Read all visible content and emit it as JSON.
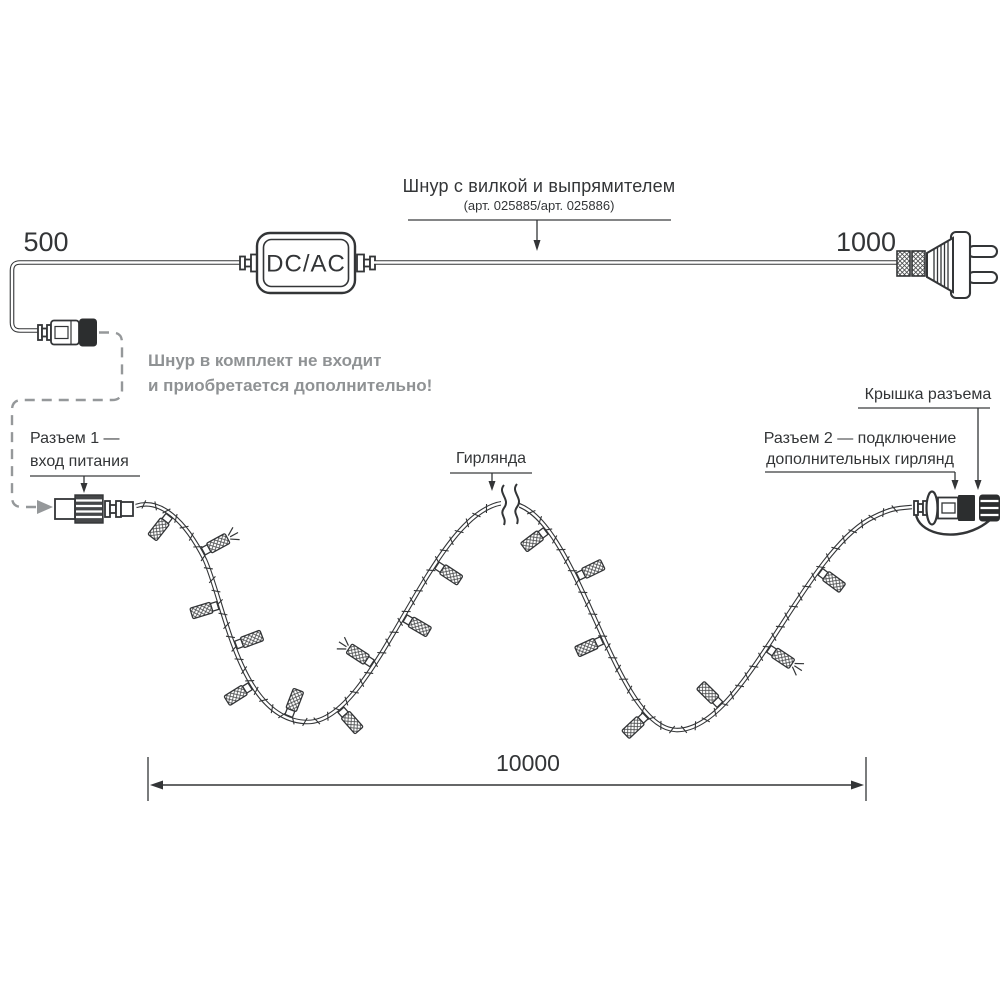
{
  "diagram": {
    "power_cord": {
      "title": "Шнур с вилкой и выпрямителем",
      "article": "(арт. 025885/арт. 025886)",
      "segment_length_left": "500",
      "segment_length_right": "1000",
      "converter_label": "DC/AC"
    },
    "note": {
      "line1": "Шнур в комплект не входит",
      "line2": "и приобретается дополнительно!"
    },
    "garland": {
      "connector1_label_line1": "Разъем 1 —",
      "connector1_label_line2": "вход питания",
      "garland_label": "Гирлянда",
      "connector2_label_line1": "Разъем 2 — подключение",
      "connector2_label_line2": "дополнительных гирлянд",
      "cap_label": "Крышка разъема",
      "total_length": "10000"
    },
    "colors": {
      "ink": "#333537",
      "gray_accent": "#8f9294",
      "background": "#ffffff"
    }
  }
}
